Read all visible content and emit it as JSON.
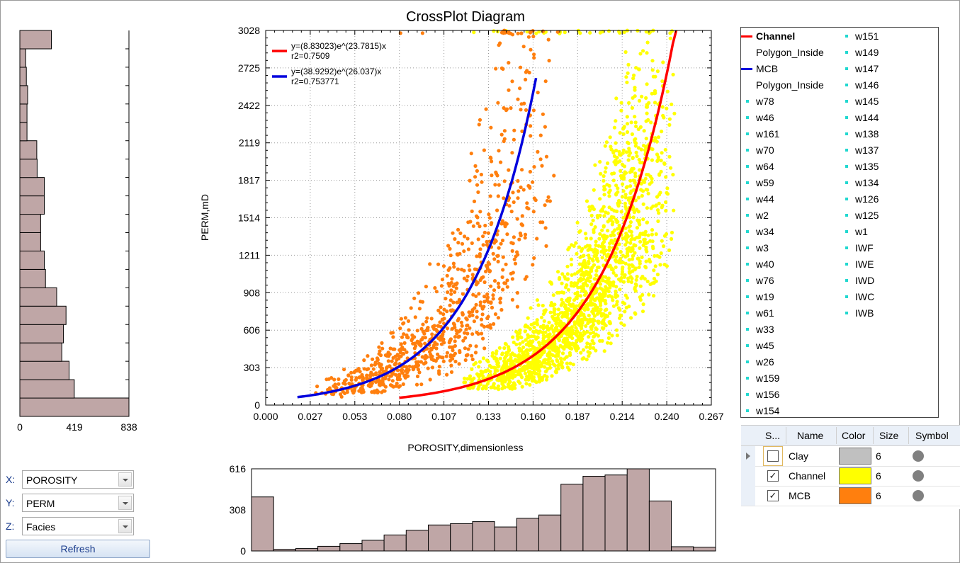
{
  "chart_data": [
    {
      "type": "scatter",
      "title": "CrossPlot Diagram",
      "xlabel": "POROSITY,dimensionless",
      "ylabel": "PERM,mD",
      "xlim": [
        0,
        0.267
      ],
      "ylim": [
        0,
        3028
      ],
      "x_ticks": [
        "0.000",
        "0.027",
        "0.053",
        "0.080",
        "0.107",
        "0.133",
        "0.160",
        "0.187",
        "0.214",
        "0.240",
        "0.267"
      ],
      "y_ticks": [
        "0",
        "303",
        "606",
        "908",
        "1211",
        "1514",
        "1817",
        "2119",
        "2422",
        "2725",
        "3028"
      ],
      "grid": true,
      "series": [
        {
          "name": "Channel",
          "color": "#ffff00",
          "marker": "circle"
        },
        {
          "name": "MCB",
          "color": "#ff7f0e",
          "marker": "circle"
        }
      ],
      "fit_lines": [
        {
          "legend_name": "Channel",
          "color": "#ff0000",
          "a": 8.83023,
          "b": 23.7815,
          "x_range": [
            0.08,
            0.246
          ],
          "equation": "y=(8.83023)e^(23.7815)x",
          "r2": "r2=0.7509"
        },
        {
          "legend_name": "MCB",
          "color": "#0000dd",
          "a": 38.9292,
          "b": 26.037,
          "x_range": [
            0.019,
            0.162
          ],
          "equation": "y=(38.9292)e^(26.037)x",
          "r2": "r2=0.753771"
        }
      ]
    },
    {
      "type": "bar",
      "orientation": "horizontal",
      "variable": "PERM",
      "xlim": [
        0,
        838
      ],
      "x_ticks": [
        "0",
        "419",
        "838"
      ],
      "values_bottom_to_top": [
        838,
        418,
        378,
        322,
        335,
        355,
        283,
        197,
        188,
        160,
        160,
        188,
        188,
        133,
        130,
        55,
        55,
        60,
        50,
        45,
        242
      ]
    },
    {
      "type": "bar",
      "variable": "POROSITY",
      "ylim": [
        0,
        616
      ],
      "y_ticks": [
        "0",
        "308",
        "616"
      ],
      "values": [
        405,
        12,
        18,
        35,
        55,
        80,
        120,
        155,
        195,
        205,
        220,
        180,
        245,
        270,
        500,
        560,
        570,
        616,
        375,
        32,
        28
      ]
    }
  ],
  "legend": {
    "col1": [
      {
        "label": "Channel",
        "type": "line",
        "color": "#ff0000",
        "bold": true
      },
      {
        "label": "Polygon_Inside",
        "type": "none"
      },
      {
        "label": "MCB",
        "type": "line",
        "color": "#0000dd"
      },
      {
        "label": "Polygon_Inside",
        "type": "none"
      },
      {
        "label": "w78",
        "type": "dot"
      },
      {
        "label": "w46",
        "type": "dot"
      },
      {
        "label": "w161",
        "type": "dot"
      },
      {
        "label": "w70",
        "type": "dot"
      },
      {
        "label": "w64",
        "type": "dot"
      },
      {
        "label": "w59",
        "type": "dot"
      },
      {
        "label": "w44",
        "type": "dot"
      },
      {
        "label": "w2",
        "type": "dot"
      },
      {
        "label": "w34",
        "type": "dot"
      },
      {
        "label": "w3",
        "type": "dot"
      },
      {
        "label": "w40",
        "type": "dot"
      },
      {
        "label": "w76",
        "type": "dot"
      },
      {
        "label": "w19",
        "type": "dot"
      },
      {
        "label": "w61",
        "type": "dot"
      },
      {
        "label": "w33",
        "type": "dot"
      },
      {
        "label": "w45",
        "type": "dot"
      },
      {
        "label": "w26",
        "type": "dot"
      },
      {
        "label": "w159",
        "type": "dot"
      },
      {
        "label": "w156",
        "type": "dot"
      },
      {
        "label": "w154",
        "type": "dot"
      }
    ],
    "col2": [
      {
        "label": "w151",
        "type": "dot"
      },
      {
        "label": "w149",
        "type": "dot"
      },
      {
        "label": "w147",
        "type": "dot"
      },
      {
        "label": "w146",
        "type": "dot"
      },
      {
        "label": "w145",
        "type": "dot"
      },
      {
        "label": "w144",
        "type": "dot"
      },
      {
        "label": "w138",
        "type": "dot"
      },
      {
        "label": "w137",
        "type": "dot"
      },
      {
        "label": "w135",
        "type": "dot"
      },
      {
        "label": "w134",
        "type": "dot"
      },
      {
        "label": "w126",
        "type": "dot"
      },
      {
        "label": "w125",
        "type": "dot"
      },
      {
        "label": "w1",
        "type": "dot"
      },
      {
        "label": "IWF",
        "type": "dot"
      },
      {
        "label": "IWE",
        "type": "dot"
      },
      {
        "label": "IWD",
        "type": "dot"
      },
      {
        "label": "IWC",
        "type": "dot"
      },
      {
        "label": "IWB",
        "type": "dot"
      }
    ]
  },
  "controls": {
    "x_label": "X:",
    "x_value": "POROSITY",
    "y_label": "Y:",
    "y_value": "PERM",
    "z_label": "Z:",
    "z_value": "Facies",
    "refresh_label": "Refresh"
  },
  "facies_table": {
    "headers": {
      "show": "S...",
      "name": "Name",
      "color": "Color",
      "size": "Size",
      "symbol": "Symbol"
    },
    "rows": [
      {
        "checked": false,
        "name": "Clay",
        "color": "#c0c0c0",
        "size": "6",
        "symbol": "circle-symbol",
        "current": true
      },
      {
        "checked": true,
        "name": "Channel",
        "color": "#ffff00",
        "size": "6",
        "symbol": "circle-symbol",
        "current": false
      },
      {
        "checked": true,
        "name": "MCB",
        "color": "#ff7f0e",
        "size": "6",
        "symbol": "circle-symbol",
        "current": false
      }
    ]
  }
}
